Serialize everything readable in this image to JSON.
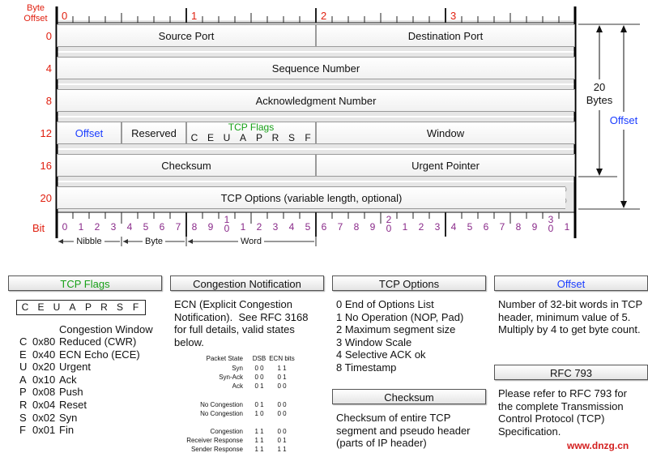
{
  "diagram": {
    "byte_offset_label": "Byte Offset",
    "byte_numbers": [
      "0",
      "1",
      "2",
      "3"
    ],
    "row_offsets": [
      "0",
      "4",
      "8",
      "12",
      "16",
      "20"
    ],
    "fields": {
      "source_port": "Source Port",
      "destination_port": "Destination Port",
      "sequence_number": "Sequence Number",
      "acknowledgment_number": "Acknowledgment Number",
      "offset": "Offset",
      "reserved": "Reserved",
      "tcp_flags": "TCP Flags",
      "flag_letters": [
        "C",
        "E",
        "U",
        "A",
        "P",
        "R",
        "S",
        "F"
      ],
      "window": "Window",
      "checksum": "Checksum",
      "urgent_pointer": "Urgent Pointer",
      "tcp_options": "TCP Options (variable length, optional)"
    },
    "bit_label": "Bit",
    "bits": [
      "0",
      "1",
      "2",
      "3",
      "4",
      "5",
      "6",
      "7",
      "8",
      "9",
      "10",
      "1",
      "2",
      "3",
      "4",
      "5",
      "6",
      "7",
      "8",
      "9",
      "20",
      "1",
      "2",
      "3",
      "4",
      "5",
      "6",
      "7",
      "8",
      "9",
      "30",
      "1"
    ],
    "groups": [
      "Nibble",
      "Byte",
      "Word"
    ],
    "size_label": "20 Bytes",
    "offset_label": "Offset"
  },
  "panels": {
    "tcp_flags": {
      "title": "TCP Flags",
      "letters": [
        "C",
        "E",
        "U",
        "A",
        "P",
        "R",
        "S",
        "F"
      ],
      "subtitle": "Congestion Window",
      "items": [
        {
          "letter": "C",
          "code": "0x80",
          "name": "Reduced (CWR)"
        },
        {
          "letter": "E",
          "code": "0x40",
          "name": "ECN Echo (ECE)"
        },
        {
          "letter": "U",
          "code": "0x20",
          "name": "Urgent"
        },
        {
          "letter": "A",
          "code": "0x10",
          "name": "Ack"
        },
        {
          "letter": "P",
          "code": "0x08",
          "name": "Push"
        },
        {
          "letter": "R",
          "code": "0x04",
          "name": "Reset"
        },
        {
          "letter": "S",
          "code": "0x02",
          "name": "Syn"
        },
        {
          "letter": "F",
          "code": "0x01",
          "name": "Fin"
        }
      ]
    },
    "congestion_notification": {
      "title": "Congestion Notification",
      "text": "ECN (Explicit Congestion Notification).  See RFC 3168 for full details, valid states below.",
      "table": {
        "header": [
          "Packet State",
          "DSB",
          "ECN bits"
        ],
        "groups": [
          [
            [
              "Syn",
              "0 0",
              "1 1"
            ],
            [
              "Syn-Ack",
              "0 0",
              "0 1"
            ],
            [
              "Ack",
              "0 1",
              "0 0"
            ]
          ],
          [
            [
              "No Congestion",
              "0 1",
              "0 0"
            ],
            [
              "No Congestion",
              "1 0",
              "0 0"
            ]
          ],
          [
            [
              "Congestion",
              "1 1",
              "0 0"
            ],
            [
              "Receiver Response",
              "1 1",
              "0 1"
            ],
            [
              "Sender Response",
              "1 1",
              "1 1"
            ]
          ]
        ]
      }
    },
    "tcp_options": {
      "title": "TCP Options",
      "items": [
        "0 End of Options List",
        "1 No Operation (NOP, Pad)",
        "2 Maximum segment size",
        "3 Window Scale",
        "4 Selective ACK ok",
        "8 Timestamp"
      ]
    },
    "checksum": {
      "title": "Checksum",
      "text": "Checksum of entire TCP segment and pseudo header (parts of IP header)"
    },
    "offset": {
      "title": "Offset",
      "text": "Number of 32-bit words in TCP header, minimum value of 5.  Multiply by 4 to get byte count."
    },
    "rfc793": {
      "title": "RFC 793",
      "text": "Please refer to RFC 793 for the complete Transmission Control Protocol (TCP) Specification."
    }
  },
  "watermark": "www.dnzg.cn"
}
